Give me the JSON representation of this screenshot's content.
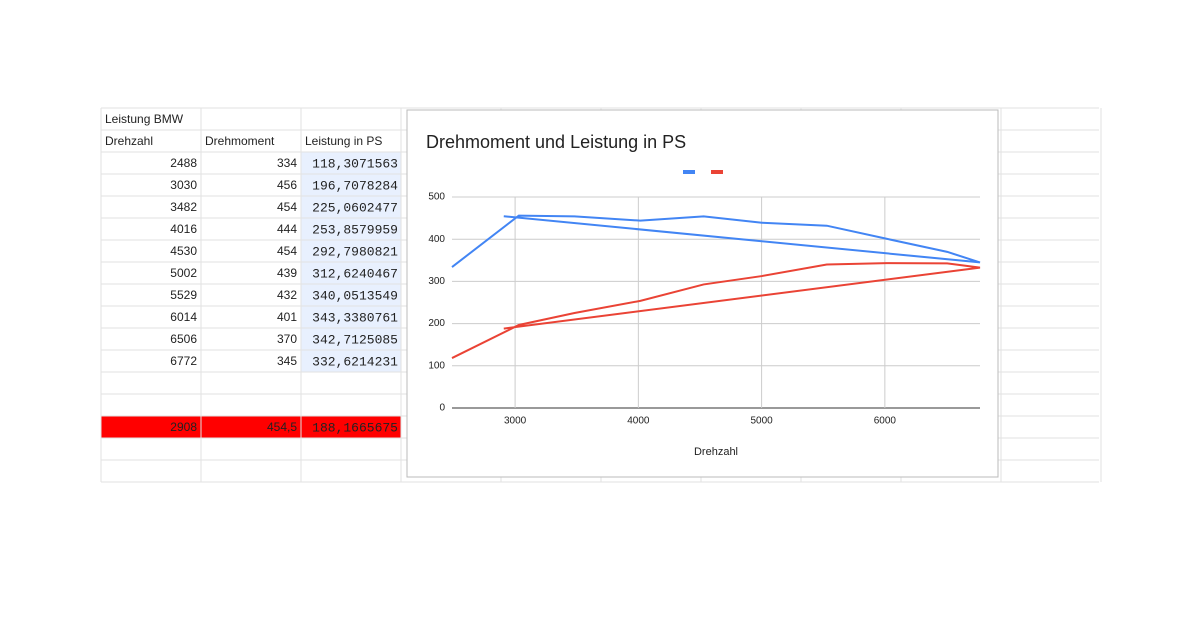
{
  "sheet": {
    "title": "Leistung BMW",
    "headers": [
      "Drehzahl",
      "Drehmoment",
      "Leistung in PS"
    ],
    "rows": [
      [
        "2488",
        "334",
        "118,3071563"
      ],
      [
        "3030",
        "456",
        "196,7078284"
      ],
      [
        "3482",
        "454",
        "225,0602477"
      ],
      [
        "4016",
        "444",
        "253,8579959"
      ],
      [
        "4530",
        "454",
        "292,7980821"
      ],
      [
        "5002",
        "439",
        "312,6240467"
      ],
      [
        "5529",
        "432",
        "340,0513549"
      ],
      [
        "6014",
        "401",
        "343,3380761"
      ],
      [
        "6506",
        "370",
        "342,7125085"
      ],
      [
        "6772",
        "345",
        "332,6214231"
      ]
    ],
    "highlight_row": [
      "2908",
      "454,5",
      "188,1665675"
    ]
  },
  "chart_data": {
    "type": "line",
    "title": "Drehmoment und Leistung in PS",
    "x_label": "Drehzahl",
    "x": [
      2488,
      3030,
      3482,
      4016,
      4530,
      5002,
      5529,
      6014,
      6506,
      6772,
      2908
    ],
    "series": [
      {
        "color": "#4285f4",
        "values": [
          334,
          456,
          454,
          444,
          454,
          439,
          432,
          401,
          370,
          345,
          454.5
        ]
      },
      {
        "color": "#ea4335",
        "values": [
          118.3071563,
          196.7078284,
          225.0602477,
          253.8579959,
          292.7980821,
          312.6240467,
          340.0513549,
          343.3380761,
          342.7125085,
          332.6214231,
          188.1665675
        ]
      }
    ],
    "xlim": [
      2488,
      6772
    ],
    "xticks": [
      3000,
      4000,
      5000,
      6000
    ],
    "ylim": [
      0,
      500
    ],
    "yticks": [
      0,
      100,
      200,
      300,
      400,
      500
    ],
    "grid": true
  }
}
